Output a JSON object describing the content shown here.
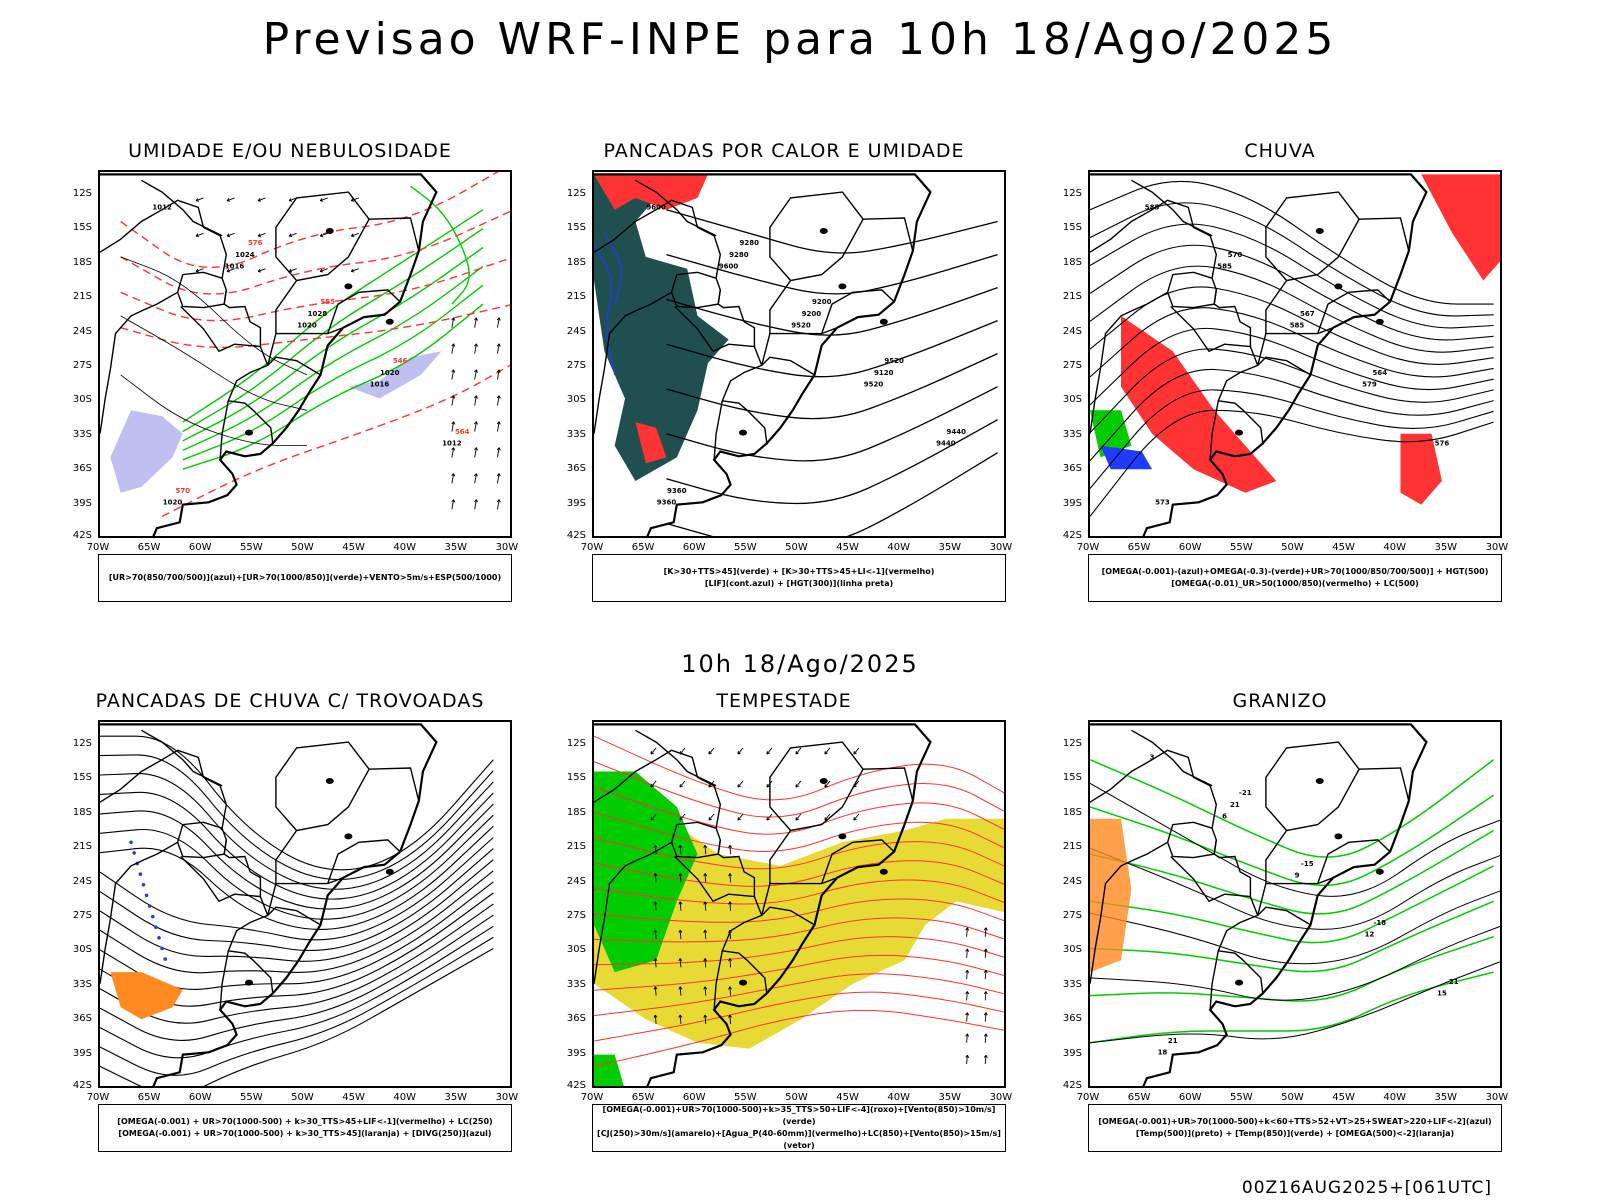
{
  "title": "Previsao WRF-INPE  para 10h 18/Ago/2025",
  "mid_time": "10h 18/Ago/2025",
  "footer": "00Z16AUG2025+[061UTC]",
  "lat_labels": [
    "12S",
    "15S",
    "18S",
    "21S",
    "24S",
    "27S",
    "30S",
    "33S",
    "36S",
    "39S",
    "42S"
  ],
  "lon_labels": [
    "70W",
    "65W",
    "60W",
    "55W",
    "50W",
    "45W",
    "40W",
    "35W",
    "30W"
  ],
  "colors": {
    "blue": "#1f3bff",
    "green": "#00cc00",
    "red": "#ff3333",
    "dark": "#1f4f4f",
    "yellow": "#e6d82a",
    "orange": "#ff8a1f",
    "lavender": "#b8b8f0"
  },
  "panels": [
    {
      "title": "UMIDADE E/OU NEBULOSIDADE",
      "legend": [
        "[UR>70(850/700/500)](azul)+[UR>70(1000/850)](verde)+VENTO>5m/s+ESP(500/1000)"
      ],
      "contour_labels": [
        "1012",
        "1016",
        "1020",
        "1016",
        "1012",
        "1020",
        "1024",
        "1028",
        "1020",
        "564",
        "570",
        "576",
        "555",
        "546"
      ]
    },
    {
      "title": "PANCADAS POR CALOR E UMIDADE",
      "legend": [
        "[K>30+TTS>45](verde)  +  [K>30+TTS>45+LI<-1](vermelho)",
        "[LIF](cont.azul)  +  [HGT(300)](linha preta)"
      ],
      "contour_labels": [
        "9600",
        "9600",
        "9520",
        "9520",
        "9440",
        "9360",
        "9280",
        "9200",
        "9120",
        "9440",
        "9360",
        "9280",
        "9200",
        "9520"
      ]
    },
    {
      "title": "CHUVA",
      "legend": [
        "[OMEGA(-0.001)-(azul)+OMEGA(-0.3)-(verde)+UR>70(1000/850/700/500)]  +  HGT(500)",
        "[OMEGA(-0.01)_UR>50(1000/850)(vermelho)  +  LC(500)"
      ],
      "contour_labels": [
        "585",
        "585",
        "585",
        "579",
        "576",
        "573",
        "570",
        "567",
        "564"
      ]
    },
    {
      "title": "PANCADAS DE CHUVA C/ TROVOADAS",
      "legend": [
        "[OMEGA(-0.001)  +  UR>70(1000-500)  +  k>30_TTS>45+LIF<-1](vermelho)  +  LC(250)",
        "[OMEGA(-0.001)  +  UR>70(1000-500)  +  k>30_TTS>45](laranja)  +  [DIVG(250)](azul)"
      ],
      "contour_labels": []
    },
    {
      "title": "TEMPESTADE",
      "legend": [
        "[OMEGA(-0.001)+UR>70(1000-500)+k>35_TTS>50+LIF<-4](roxo)+[Vento(850)>10m/s](verde)",
        "[CJ(250)>30m/s](amarelo)+[Agua_P(40-60mm)](vermelho)+LC(850)+[Vento(850)>15m/s](vetor)"
      ],
      "contour_labels": []
    },
    {
      "title": "GRANIZO",
      "legend": [
        "[OMEGA(-0.001)+UR>70(1000-500)+k<60+TTS>52+VT>25+SWEAT>220+LIF<-2](azul)",
        "[Temp(500)](preto)  +  [Temp(850)](verde)  +  [OMEGA(500)<-2](laranja)"
      ],
      "contour_labels": [
        "3",
        "6",
        "9",
        "12",
        "15",
        "18",
        "21",
        "-15",
        "-18",
        "-21",
        "21",
        "-21"
      ]
    }
  ]
}
